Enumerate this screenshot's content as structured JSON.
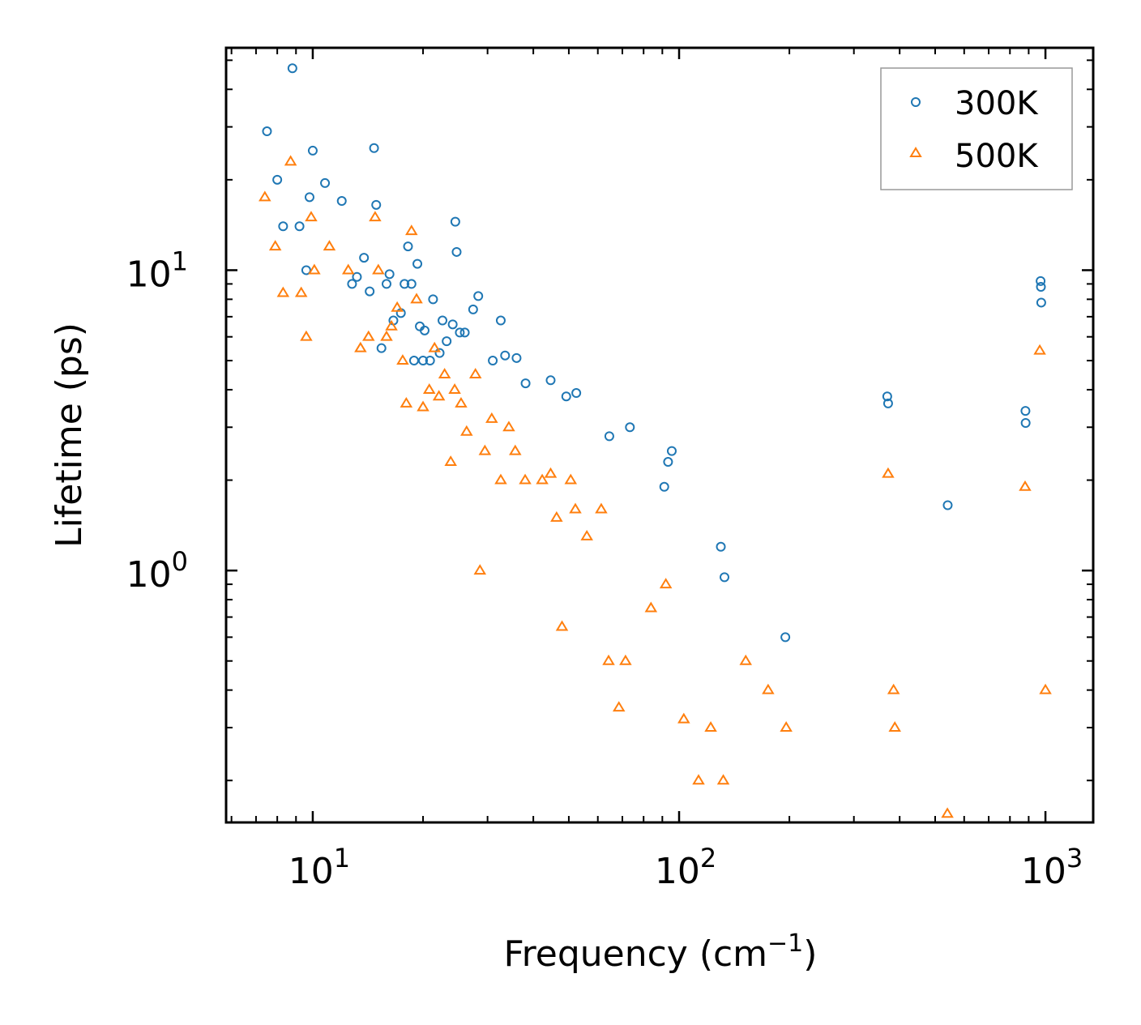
{
  "chart_data": {
    "type": "scatter",
    "title": "",
    "xlabel": "Frequency (cm",
    "xlabel_superscript": "−1",
    "xlabel_close": ")",
    "ylabel": "Lifetime (ps)",
    "xscale": "log",
    "yscale": "log",
    "xlim": [
      5.8,
      1350
    ],
    "ylim": [
      0.145,
      55
    ],
    "x_major_ticks": [
      {
        "value": 10,
        "base": "10",
        "exp": "1"
      },
      {
        "value": 100,
        "base": "10",
        "exp": "2"
      },
      {
        "value": 1000,
        "base": "10",
        "exp": "3"
      }
    ],
    "y_major_ticks": [
      {
        "value": 1,
        "base": "10",
        "exp": "0"
      },
      {
        "value": 10,
        "base": "10",
        "exp": "1"
      }
    ],
    "legend": {
      "position": "top-right"
    },
    "series": [
      {
        "name": "300K",
        "marker": "circle-open",
        "color": "#1f77b4",
        "points": [
          [
            7.5,
            29
          ],
          [
            8.0,
            20
          ],
          [
            8.3,
            14
          ],
          [
            8.8,
            47
          ],
          [
            9.2,
            14
          ],
          [
            9.6,
            10
          ],
          [
            9.8,
            17.5
          ],
          [
            10.0,
            25
          ],
          [
            10.8,
            19.5
          ],
          [
            12.0,
            17
          ],
          [
            12.8,
            9
          ],
          [
            13.2,
            9.5
          ],
          [
            13.8,
            11
          ],
          [
            14.3,
            8.5
          ],
          [
            14.7,
            25.5
          ],
          [
            14.9,
            16.5
          ],
          [
            15.4,
            5.5
          ],
          [
            15.9,
            9
          ],
          [
            16.2,
            9.7
          ],
          [
            16.6,
            6.8
          ],
          [
            17.4,
            7.2
          ],
          [
            17.8,
            9
          ],
          [
            18.2,
            12
          ],
          [
            18.6,
            9
          ],
          [
            18.9,
            5
          ],
          [
            19.3,
            10.5
          ],
          [
            19.6,
            6.5
          ],
          [
            20.0,
            5
          ],
          [
            20.2,
            6.3
          ],
          [
            20.9,
            5
          ],
          [
            21.3,
            8
          ],
          [
            22.2,
            5.3
          ],
          [
            22.6,
            6.8
          ],
          [
            23.2,
            5.8
          ],
          [
            24.1,
            6.6
          ],
          [
            24.5,
            14.5
          ],
          [
            24.7,
            11.5
          ],
          [
            25.2,
            6.2
          ],
          [
            26.0,
            6.2
          ],
          [
            27.4,
            7.4
          ],
          [
            28.3,
            8.2
          ],
          [
            31.0,
            5
          ],
          [
            32.6,
            6.8
          ],
          [
            33.5,
            5.2
          ],
          [
            36.0,
            5.1
          ],
          [
            38.1,
            4.2
          ],
          [
            44.6,
            4.3
          ],
          [
            49.2,
            3.8
          ],
          [
            52.4,
            3.9
          ],
          [
            64.5,
            2.8
          ],
          [
            73.4,
            3
          ],
          [
            91.1,
            1.9
          ],
          [
            93.3,
            2.3
          ],
          [
            95.5,
            2.5
          ],
          [
            130,
            1.2
          ],
          [
            133,
            0.95
          ],
          [
            195,
            0.6
          ],
          [
            370,
            3.8
          ],
          [
            372,
            3.6
          ],
          [
            541,
            1.65
          ],
          [
            882,
            3.4
          ],
          [
            883,
            3.1
          ],
          [
            970,
            9.2
          ],
          [
            972,
            8.8
          ],
          [
            974,
            7.8
          ]
        ]
      },
      {
        "name": "500K",
        "marker": "triangle-open",
        "color": "#ff7f0e",
        "points": [
          [
            7.4,
            17.5
          ],
          [
            7.9,
            12
          ],
          [
            8.3,
            8.4
          ],
          [
            8.7,
            23
          ],
          [
            9.3,
            8.4
          ],
          [
            9.6,
            6
          ],
          [
            9.9,
            15
          ],
          [
            10.1,
            10
          ],
          [
            11.1,
            12
          ],
          [
            12.5,
            10
          ],
          [
            13.5,
            5.5
          ],
          [
            14.2,
            6
          ],
          [
            14.8,
            15
          ],
          [
            15.1,
            10
          ],
          [
            15.9,
            6
          ],
          [
            16.4,
            6.5
          ],
          [
            17.0,
            7.5
          ],
          [
            17.6,
            5
          ],
          [
            18.0,
            3.6
          ],
          [
            18.6,
            13.5
          ],
          [
            19.2,
            8
          ],
          [
            20.0,
            3.5
          ],
          [
            20.8,
            4
          ],
          [
            21.5,
            5.5
          ],
          [
            22.1,
            3.8
          ],
          [
            22.9,
            4.5
          ],
          [
            23.8,
            2.3
          ],
          [
            24.4,
            4
          ],
          [
            25.4,
            3.6
          ],
          [
            26.3,
            2.9
          ],
          [
            27.8,
            4.5
          ],
          [
            28.6,
            1
          ],
          [
            29.5,
            2.5
          ],
          [
            30.8,
            3.2
          ],
          [
            32.6,
            2
          ],
          [
            34.3,
            3
          ],
          [
            35.7,
            2.5
          ],
          [
            38.0,
            2
          ],
          [
            42.3,
            2
          ],
          [
            44.6,
            2.1
          ],
          [
            46.3,
            1.5
          ],
          [
            47.9,
            0.65
          ],
          [
            50.6,
            2
          ],
          [
            52.1,
            1.6
          ],
          [
            56.0,
            1.3
          ],
          [
            61.3,
            1.6
          ],
          [
            64.2,
            0.5
          ],
          [
            68.5,
            0.35
          ],
          [
            71.4,
            0.5
          ],
          [
            83.8,
            0.75
          ],
          [
            92.0,
            0.9
          ],
          [
            103,
            0.32
          ],
          [
            113,
            0.2
          ],
          [
            122,
            0.3
          ],
          [
            132,
            0.2
          ],
          [
            152,
            0.5
          ],
          [
            175,
            0.4
          ],
          [
            196,
            0.3
          ],
          [
            372,
            2.1
          ],
          [
            385,
            0.4
          ],
          [
            388,
            0.3
          ],
          [
            540,
            0.155
          ],
          [
            880,
            1.9
          ],
          [
            965,
            5.4
          ],
          [
            1000,
            0.4
          ]
        ]
      }
    ]
  }
}
